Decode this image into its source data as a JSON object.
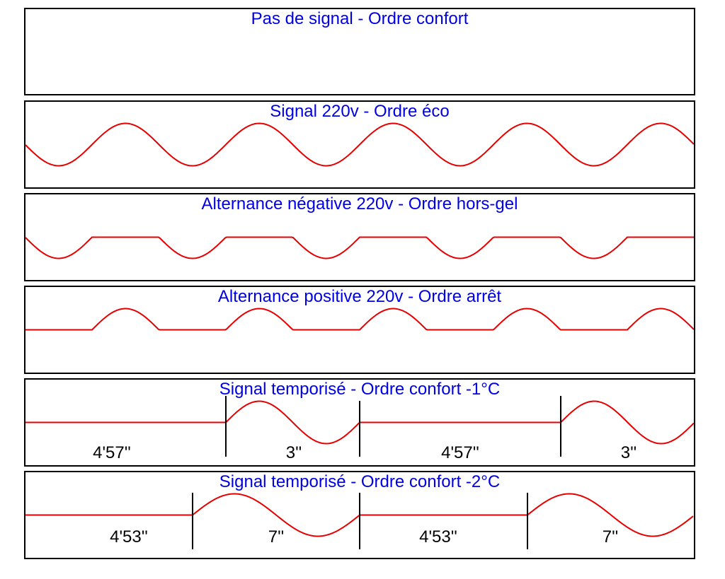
{
  "colors": {
    "title": "#0000e6",
    "wave": "#e60000",
    "frame": "#000000",
    "label": "#000000"
  },
  "panels": [
    {
      "title": "Pas de signal - Ordre confort",
      "signal": "none",
      "labels": []
    },
    {
      "title": "Signal 220v - Ordre éco",
      "signal": "full",
      "labels": []
    },
    {
      "title": "Alternance négative 220v - Ordre hors-gel",
      "signal": "negative",
      "labels": []
    },
    {
      "title": "Alternance positive 220v - Ordre arrêt",
      "signal": "positive",
      "labels": []
    },
    {
      "title": "Signal temporisé - Ordre confort -1°C",
      "signal": "timed",
      "labels": [
        "4'57''",
        "3''",
        "4'57''",
        "3''"
      ]
    },
    {
      "title": "Signal temporisé - Ordre confort -2°C",
      "signal": "timed",
      "labels": [
        "4'53''",
        "7''",
        "4'53''",
        "7''"
      ]
    }
  ]
}
